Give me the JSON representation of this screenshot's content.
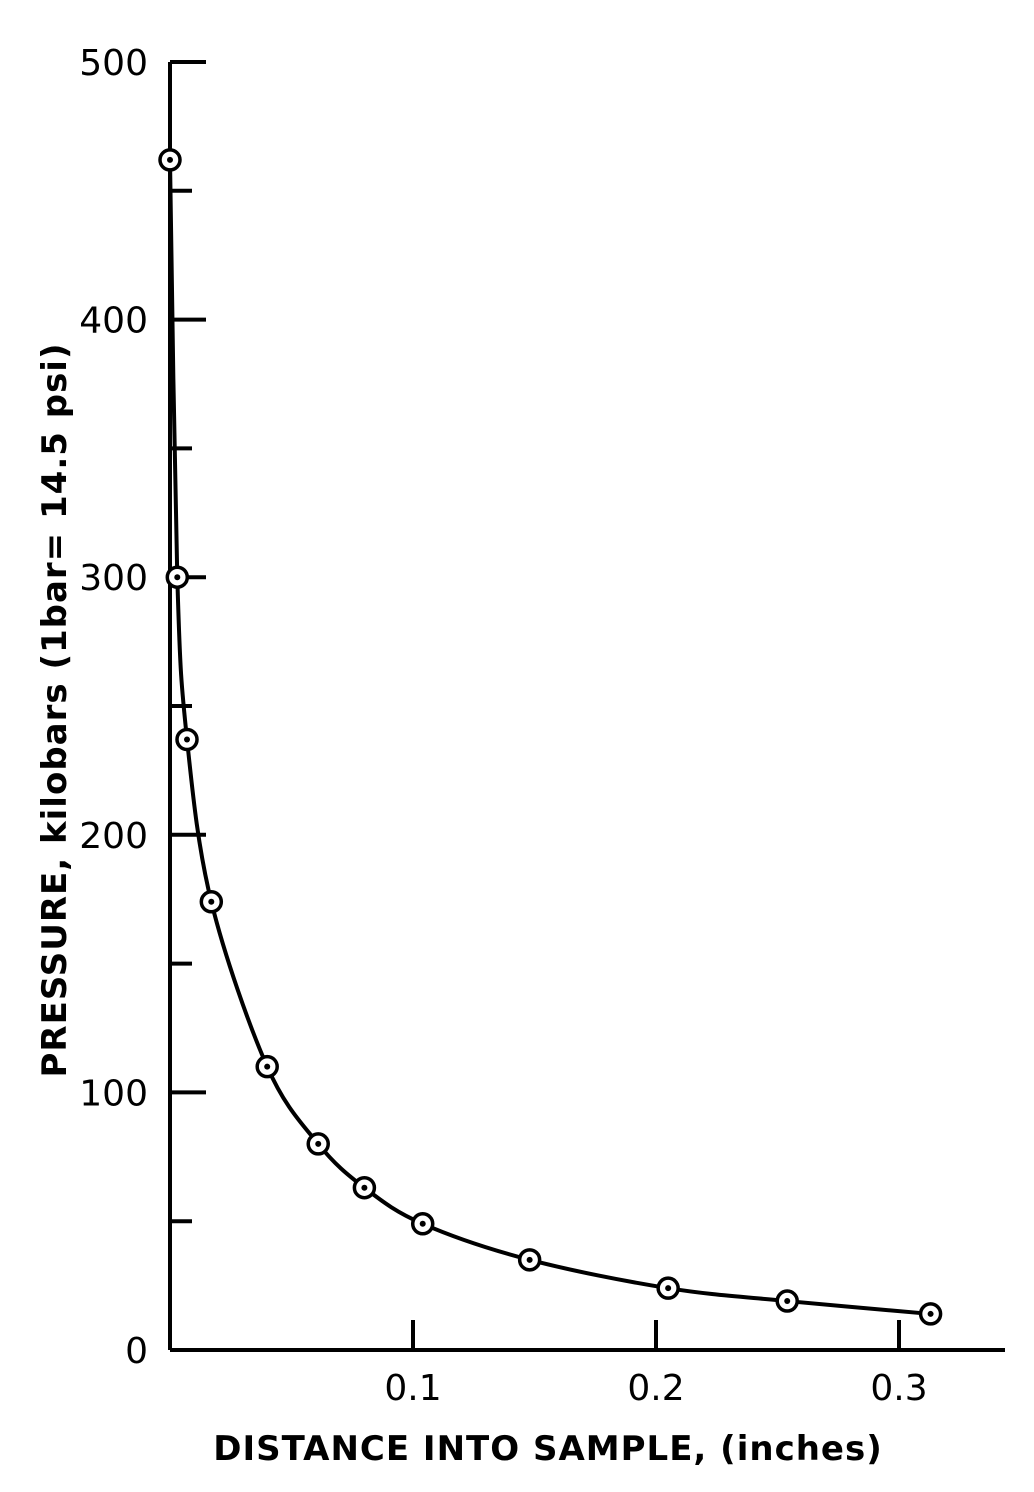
{
  "chart_data": {
    "type": "scatter",
    "xlabel": "DISTANCE INTO SAMPLE, (inches)",
    "ylabel": "PRESSURE, kilobars (1bar= 14.5 psi)",
    "xlim": [
      0,
      0.33
    ],
    "ylim": [
      0,
      500
    ],
    "x_ticks": [
      0.1,
      0.2,
      0.3
    ],
    "x_tick_labels": [
      "0.1",
      "0.2",
      "0.3"
    ],
    "y_ticks": [
      0,
      100,
      200,
      300,
      400,
      500
    ],
    "y_tick_labels": [
      "0",
      "100",
      "200",
      "300",
      "400",
      "500"
    ],
    "y_minor_ticks": [
      50,
      150,
      250,
      350,
      450
    ],
    "grid": false,
    "series": [
      {
        "markers": "circle-dot",
        "fit_line": true,
        "x": [
          0.0,
          0.003,
          0.007,
          0.017,
          0.04,
          0.061,
          0.08,
          0.104,
          0.148,
          0.205,
          0.254,
          0.313
        ],
        "y": [
          462,
          300,
          237,
          174,
          110,
          80,
          63,
          49,
          35,
          24,
          19,
          14
        ]
      }
    ]
  }
}
